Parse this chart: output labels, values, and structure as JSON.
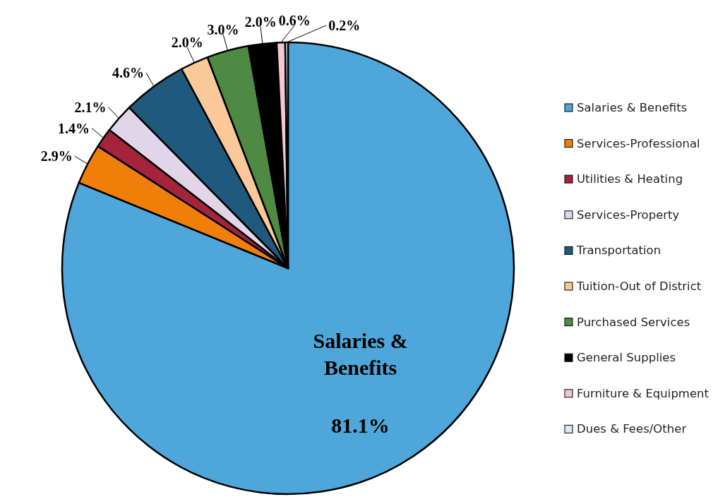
{
  "chart_data": {
    "type": "pie",
    "categories": [
      "Salaries & Benefits",
      "Services-Professional",
      "Utilities & Heating",
      "Services-Property",
      "Transportation",
      "Tuition-Out of District",
      "Purchased Services",
      "General Supplies",
      "Furniture & Equipment",
      "Dues & Fees/Other"
    ],
    "values": [
      81.1,
      2.9,
      1.4,
      2.1,
      4.6,
      2.0,
      3.0,
      2.0,
      0.6,
      0.2
    ],
    "colors": [
      "#4ea6da",
      "#f07f0a",
      "#a4243b",
      "#e0d6e8",
      "#1f5a7e",
      "#fbc999",
      "#4e8a43",
      "#000000",
      "#f5c8d0",
      "#d9ebf7"
    ],
    "value_labels": [
      "81.1%",
      "2.9%",
      "1.4%",
      "2.1%",
      "4.6%",
      "2.0%",
      "3.0%",
      "2.0%",
      "0.6%",
      "0.2%"
    ],
    "legend": "right"
  }
}
